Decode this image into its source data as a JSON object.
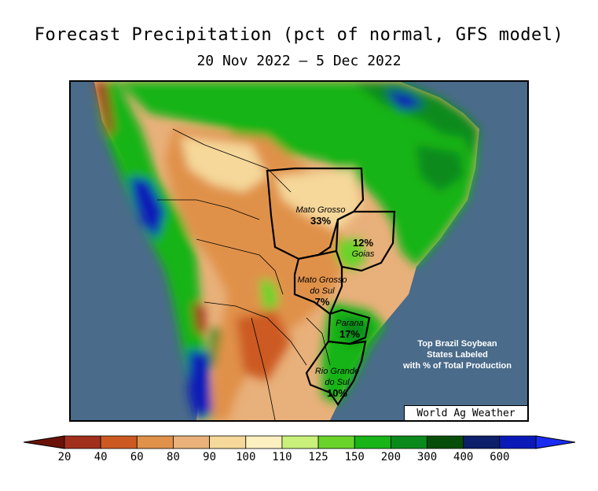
{
  "title": "Forecast Precipitation (pct of normal, GFS model)",
  "subtitle": "20 Nov 2022 – 5 Dec 2022",
  "credit": "World Ag Weather",
  "note": {
    "line1": "Top Brazil Soybean",
    "line2": "States Labeled",
    "line3": "with % of Total Production"
  },
  "states": [
    {
      "name": "Mato Grosso",
      "pct": "33%"
    },
    {
      "name": "Goias",
      "pct": "12%"
    },
    {
      "name_line1": "Mato Grosso",
      "name_line2": "do Sul",
      "pct": "7%"
    },
    {
      "name": "Parana",
      "pct": "17%"
    },
    {
      "name_line1": "Rio Grande",
      "name_line2": "do Sul",
      "pct": "10%"
    }
  ],
  "colorbar": {
    "ticks": [
      "20",
      "40",
      "60",
      "80",
      "90",
      "100",
      "110",
      "125",
      "150",
      "200",
      "300",
      "400",
      "600"
    ],
    "colors": [
      "#a0301c",
      "#cc5a20",
      "#e0914a",
      "#eab27a",
      "#f5d89a",
      "#fdf0c0",
      "#c8f07a",
      "#6ad32a",
      "#18b418",
      "#0a8a1a",
      "#064e0a",
      "#0b1f6a",
      "#0a1ab8"
    ],
    "low_color": "#6b1208",
    "high_color": "#1a2cf0"
  },
  "colors": {
    "ocean": "#4a6b8a",
    "land_dry": "#e8b07a",
    "land_wet": "#1a9a1a"
  }
}
